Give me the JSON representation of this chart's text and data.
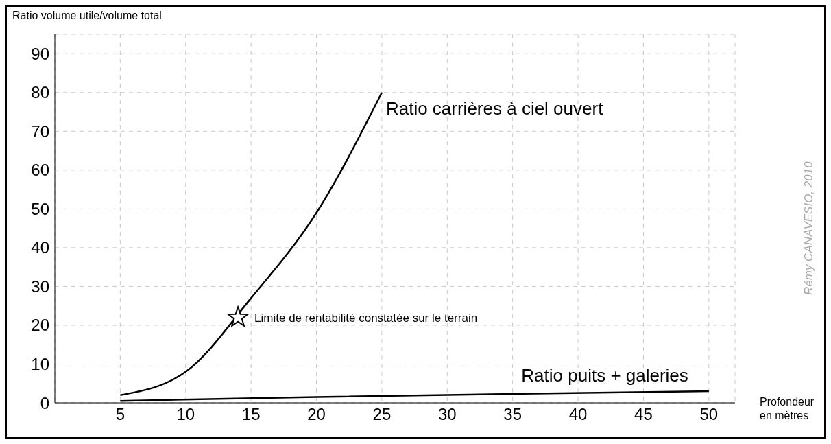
{
  "chart_data": {
    "type": "line",
    "xlabel": "Profondeur en mètres",
    "ylabel": "Ratio volume utile/volume total",
    "xlim": [
      0,
      52
    ],
    "xticks": [
      5,
      10,
      15,
      20,
      25,
      30,
      35,
      40,
      45,
      50
    ],
    "ylim": [
      0,
      95
    ],
    "yticks": [
      0,
      10,
      20,
      30,
      40,
      50,
      60,
      70,
      80,
      90
    ],
    "grid": true,
    "legend": false,
    "marker": "none",
    "line_style": "solid",
    "series": [
      {
        "name": "Ratio carrières à ciel ouvert",
        "color": "#000000",
        "x": [
          5,
          10,
          15,
          20,
          25
        ],
        "values": [
          2,
          8,
          27,
          49,
          80
        ]
      },
      {
        "name": "Ratio puits + galeries",
        "color": "#000000",
        "x": [
          5,
          20,
          35,
          50
        ],
        "values": [
          0.5,
          1.5,
          2.3,
          3
        ]
      }
    ],
    "annotations": [
      {
        "text": "Limite de rentabilité constatée sur le terrain",
        "x": 14,
        "y": 22
      },
      "Rémy CANAVESIO, 2010"
    ]
  }
}
